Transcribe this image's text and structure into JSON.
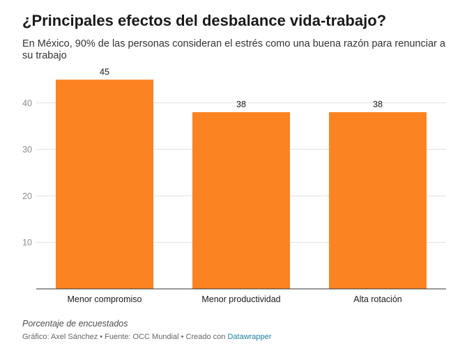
{
  "header": {
    "title": "¿Principales efectos del desbalance vida-trabajo?",
    "subtitle": "En México, 90% de las personas consideran el estrés como una buena razón para renunciar a su trabajo"
  },
  "chart_data": {
    "type": "bar",
    "categories": [
      "Menor compromiso",
      "Menor productividad",
      "Alta rotación"
    ],
    "values": [
      45,
      38,
      38
    ],
    "title": "¿Principales efectos del desbalance vida-trabajo?",
    "xlabel": "",
    "ylabel": "",
    "ylim": [
      0,
      50
    ],
    "yticks": [
      10,
      20,
      30,
      40
    ],
    "grid": true,
    "bar_color": "#fc8321"
  },
  "footer": {
    "notes": "Porcentaje de encuestados",
    "credit_prefix": "Gráfico: Axel Sánchez • Fuente: OCC Mundial • Creado con",
    "credit_link": "Datawrapper"
  }
}
